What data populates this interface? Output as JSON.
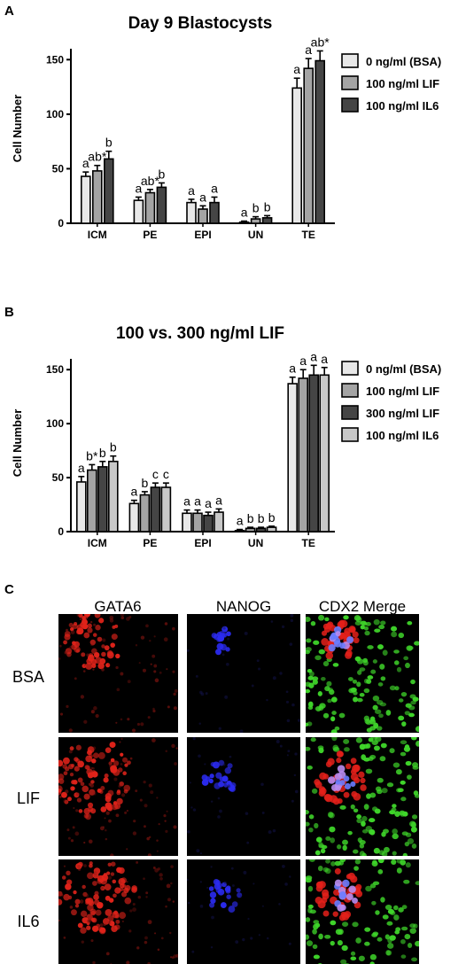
{
  "panels": {
    "a": "A",
    "b": "B",
    "c": "C"
  },
  "chart_data": [
    {
      "type": "bar",
      "title": "Day 9 Blastocysts",
      "xlabel": "",
      "ylabel": "Cell Number",
      "ylim": [
        0,
        160
      ],
      "yticks": [
        "0",
        "50",
        "100",
        "150"
      ],
      "categories": [
        "ICM",
        "PE",
        "EPI",
        "UN",
        "TE"
      ],
      "legend_position": "right",
      "series": [
        {
          "name": "0 ng/ml (BSA)",
          "color": "#e8e8e8",
          "values": [
            43,
            21,
            19,
            1,
            124
          ],
          "errors": [
            4,
            3,
            3,
            1,
            9
          ],
          "sig": [
            "",
            "a",
            "a",
            "a",
            "a"
          ]
        },
        {
          "name": "100 ng/ml LIF",
          "color": "#a4a4a4",
          "values": [
            48,
            28,
            13,
            4,
            142
          ],
          "errors": [
            5,
            3,
            3,
            2,
            9
          ],
          "sig": [
            "ab*",
            "ab*",
            "a",
            "b",
            "a"
          ]
        },
        {
          "name": "100 ng/ml IL6",
          "color": "#454545",
          "values": [
            59,
            33,
            19,
            5,
            149
          ],
          "errors": [
            7,
            4,
            5,
            2,
            9
          ],
          "sig": [
            "b",
            "b",
            "a",
            "b",
            "ab*"
          ]
        }
      ],
      "extra_labels": [
        {
          "category": 0,
          "series": 0,
          "text": "a"
        }
      ]
    },
    {
      "type": "bar",
      "title": "100 vs. 300 ng/ml LIF",
      "xlabel": "",
      "ylabel": "Cell Number",
      "ylim": [
        0,
        160
      ],
      "yticks": [
        "0",
        "50",
        "100",
        "150"
      ],
      "categories": [
        "ICM",
        "PE",
        "EPI",
        "UN",
        "TE"
      ],
      "legend_position": "right",
      "series": [
        {
          "name": "0 ng/ml (BSA)",
          "color": "#e8e8e8",
          "values": [
            46,
            26,
            17,
            1,
            137
          ],
          "errors": [
            5,
            3,
            3,
            1,
            6
          ],
          "sig": [
            "a",
            "a",
            "a",
            "a",
            "a"
          ]
        },
        {
          "name": "100 ng/ml LIF",
          "color": "#a4a4a4",
          "values": [
            57,
            34,
            17,
            3,
            142
          ],
          "errors": [
            5,
            3,
            3,
            1,
            8
          ],
          "sig": [
            "b*",
            "b",
            "a",
            "b",
            "a"
          ]
        },
        {
          "name": "300 ng/ml LIF",
          "color": "#454545",
          "values": [
            60,
            41,
            15,
            3,
            145
          ],
          "errors": [
            5,
            4,
            3,
            1,
            9
          ],
          "sig": [
            "b",
            "c",
            "a",
            "b",
            "a"
          ]
        },
        {
          "name": "100 ng/ml IL6",
          "color": "#c8c8c8",
          "values": [
            65,
            41,
            18,
            4,
            145
          ],
          "errors": [
            5,
            4,
            3,
            1,
            7
          ],
          "sig": [
            "b",
            "c",
            "a",
            "b",
            "a"
          ]
        }
      ]
    }
  ],
  "micrographs": {
    "columns": [
      "GATA6",
      "NANOG",
      "CDX2 Merge"
    ],
    "rows": [
      "BSA",
      "LIF",
      "IL6"
    ]
  }
}
